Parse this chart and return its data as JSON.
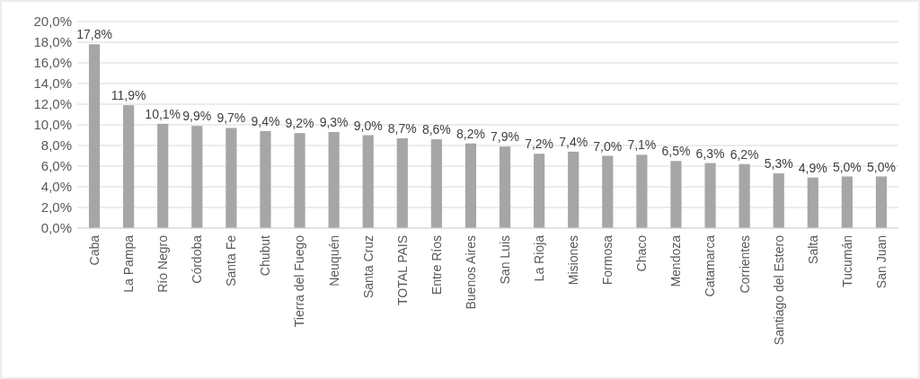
{
  "chart_data": {
    "type": "bar",
    "categories": [
      "Caba",
      "La Pampa",
      "Río Negro",
      "Córdoba",
      "Santa Fe",
      "Chubut",
      "Tierra del Fuego",
      "Neuquén",
      "Santa Cruz",
      "TOTAL PAIS",
      "Entre Ríos",
      "Buenos Aires",
      "San Luis",
      "La Rioja",
      "Misiones",
      "Formosa",
      "Chaco",
      "Mendoza",
      "Catamarca",
      "Corrientes",
      "Santiago del Estero",
      "Salta",
      "Tucumán",
      "San Juan"
    ],
    "values": [
      17.8,
      11.9,
      10.1,
      9.9,
      9.7,
      9.4,
      9.2,
      9.3,
      9.0,
      8.7,
      8.6,
      8.2,
      7.9,
      7.2,
      7.4,
      7.0,
      7.1,
      6.5,
      6.3,
      6.2,
      5.3,
      4.9,
      5.0,
      5.0
    ],
    "value_labels": [
      "17,8%",
      "11,9%",
      "10,1%",
      "9,9%",
      "9,7%",
      "9,4%",
      "9,2%",
      "9,3%",
      "9,0%",
      "8,7%",
      "8,6%",
      "8,2%",
      "7,9%",
      "7,2%",
      "7,4%",
      "7,0%",
      "7,1%",
      "6,5%",
      "6,3%",
      "6,2%",
      "5,3%",
      "4,9%",
      "5,0%",
      "5,0%"
    ],
    "color": "#a6a6a6",
    "ylim": [
      0,
      20
    ],
    "yticks": [
      {
        "value": 0,
        "label": "0,0%"
      },
      {
        "value": 2,
        "label": "2,0%"
      },
      {
        "value": 4,
        "label": "4,0%"
      },
      {
        "value": 6,
        "label": "6,0%"
      },
      {
        "value": 8,
        "label": "8,0%"
      },
      {
        "value": 10,
        "label": "10,0%"
      },
      {
        "value": 12,
        "label": "12,0%"
      },
      {
        "value": 14,
        "label": "14,0%"
      },
      {
        "value": 16,
        "label": "16,0%"
      },
      {
        "value": 18,
        "label": "18,0%"
      },
      {
        "value": 20,
        "label": "20,0%"
      }
    ],
    "grid": "y"
  }
}
